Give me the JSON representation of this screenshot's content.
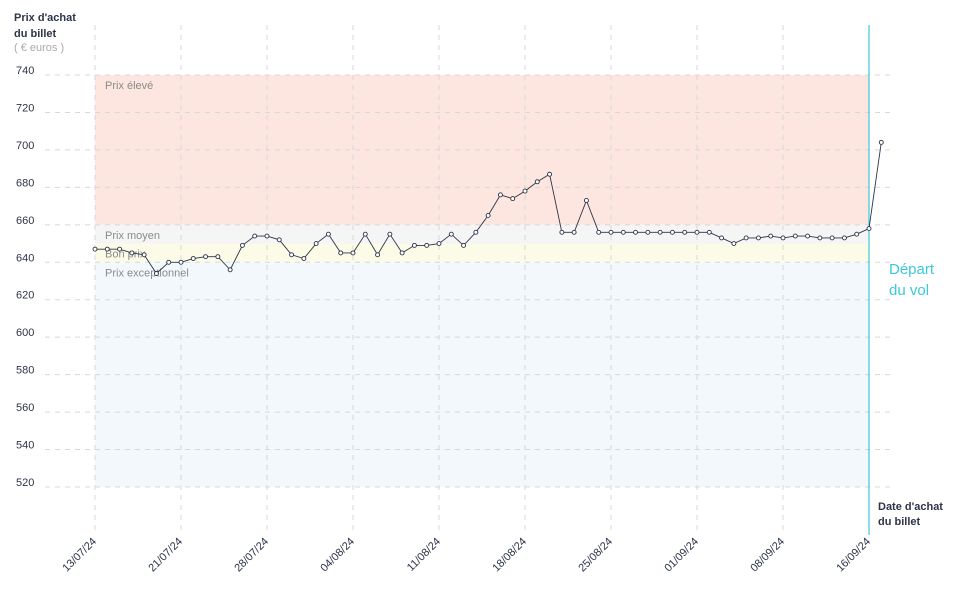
{
  "chart_data": {
    "type": "line",
    "y_title": [
      "Prix d'achat",
      "du billet"
    ],
    "y_unit": "( € euros )",
    "x_title": [
      "Date d'achat",
      "du billet"
    ],
    "annotation": [
      "Départ",
      "du vol"
    ],
    "ylim": [
      520,
      740
    ],
    "yticks": [
      520,
      540,
      560,
      580,
      600,
      620,
      640,
      660,
      680,
      700,
      720,
      740
    ],
    "xticks": [
      "13/07/24",
      "21/07/24",
      "28/07/24",
      "04/08/24",
      "11/08/24",
      "18/08/24",
      "25/08/24",
      "01/09/24",
      "08/09/24",
      "16/09/24"
    ],
    "bands": [
      {
        "label": "Prix élevé",
        "from": 660,
        "to": 740,
        "color": "#fde6df"
      },
      {
        "label": "Prix moyen",
        "from": 650,
        "to": 660,
        "color": "#f6f5f6"
      },
      {
        "label": "Bon prix",
        "from": 640,
        "to": 650,
        "color": "#fbfbe8"
      },
      {
        "label": "Prix exceptionnel",
        "from": 520,
        "to": 640,
        "color": "#f2f8fc"
      }
    ],
    "color": "#2d3448",
    "departure_color": "#3cc8dc",
    "grid": true,
    "values": [
      647,
      647,
      647,
      645,
      644,
      634,
      640,
      640,
      642,
      643,
      643,
      636,
      649,
      654,
      654,
      652,
      644,
      642,
      650,
      655,
      645,
      645,
      655,
      644,
      655,
      645,
      649,
      649,
      650,
      655,
      649,
      656,
      665,
      676,
      674,
      678,
      683,
      687,
      656,
      656,
      673,
      656,
      656,
      656,
      656,
      656,
      656,
      656,
      656,
      656,
      656,
      653,
      650,
      653,
      653,
      654,
      653,
      654,
      654,
      653,
      653,
      653,
      655,
      658,
      704
    ]
  }
}
